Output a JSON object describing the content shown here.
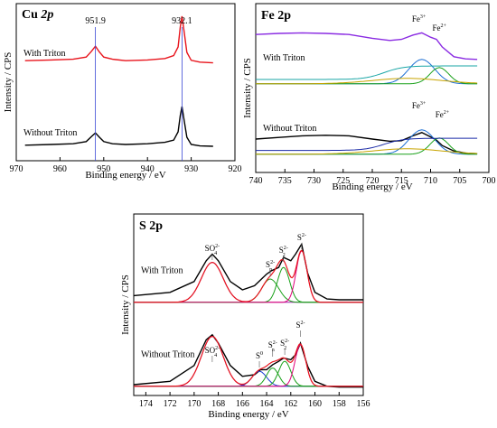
{
  "chart_data": [
    {
      "type": "line",
      "title_main": "Cu",
      "title_sub": "2p",
      "xlabel": "Binding energy / eV",
      "ylabel": "Intensity / CPS",
      "xlim": [
        970,
        920
      ],
      "xticks": [
        970,
        960,
        950,
        940,
        930,
        920
      ],
      "peak_labels": [
        {
          "x": 951.9,
          "text": "951.9"
        },
        {
          "x": 932.1,
          "text": "932.1"
        }
      ],
      "series": [
        {
          "name": "With Triton",
          "color": "#e8141c",
          "offset": 1.0,
          "x": [
            968,
            962,
            957,
            954,
            952.8,
            951.9,
            951,
            950,
            948,
            945,
            940,
            936,
            934,
            933,
            932.5,
            932.1,
            931.6,
            931,
            930,
            928,
            925
          ],
          "y": [
            0.32,
            0.34,
            0.36,
            0.42,
            0.58,
            0.72,
            0.56,
            0.42,
            0.36,
            0.32,
            0.34,
            0.38,
            0.46,
            0.7,
            1.25,
            1.55,
            1.1,
            0.55,
            0.33,
            0.28,
            0.26
          ]
        },
        {
          "name": "Without Triton",
          "color": "#000000",
          "offset": 0.0,
          "x": [
            968,
            962,
            957,
            954,
            952.8,
            951.9,
            951,
            950,
            948,
            945,
            940,
            936,
            934,
            933,
            932.5,
            932.1,
            931.6,
            931,
            930,
            928,
            925
          ],
          "y": [
            0.18,
            0.2,
            0.22,
            0.28,
            0.42,
            0.52,
            0.4,
            0.28,
            0.22,
            0.2,
            0.22,
            0.26,
            0.32,
            0.55,
            1.0,
            1.25,
            0.85,
            0.4,
            0.2,
            0.16,
            0.15
          ]
        }
      ]
    },
    {
      "type": "line",
      "title": "Fe 2p",
      "xlabel": "Binding energy / eV",
      "ylabel": "Intensity / CPS",
      "xlim": [
        740,
        700
      ],
      "xticks": [
        740,
        735,
        730,
        725,
        720,
        715,
        710,
        705,
        700
      ],
      "series": [
        {
          "name": "With Triton",
          "color": "#8a2be2",
          "offset": 1.0,
          "x": [
            740,
            736,
            732,
            728,
            724,
            720,
            717,
            715,
            713,
            711.5,
            710,
            709,
            708,
            706,
            704,
            702
          ],
          "y": [
            0.93,
            0.95,
            0.96,
            0.95,
            0.93,
            0.86,
            0.82,
            0.84,
            0.92,
            0.96,
            0.88,
            0.84,
            0.7,
            0.52,
            0.48,
            0.47
          ]
        },
        {
          "name": "Without Triton",
          "color": "#000000",
          "offset": 0.0,
          "x": [
            740,
            736,
            732,
            728,
            724,
            720,
            717,
            715,
            713,
            711.5,
            710,
            709,
            708,
            706,
            704,
            702
          ],
          "y": [
            0.3,
            0.33,
            0.36,
            0.37,
            0.36,
            0.3,
            0.26,
            0.27,
            0.36,
            0.42,
            0.34,
            0.28,
            0.18,
            0.08,
            0.04,
            0.03
          ]
        }
      ],
      "peak_labels": [
        {
          "text": "Fe",
          "sup": "3+",
          "x": 712,
          "row": "top"
        },
        {
          "text": "Fe",
          "sup": "2+",
          "x": 708.5,
          "row": "top"
        },
        {
          "text": "Fe",
          "sup": "3+",
          "x": 712,
          "row": "bottom"
        },
        {
          "text": "Fe",
          "sup": "2+",
          "x": 708,
          "row": "bottom"
        }
      ]
    },
    {
      "type": "line",
      "title": "S 2p",
      "xlabel": "Binding energy / eV",
      "ylabel": "Intensity / CPS",
      "xlim": [
        175,
        156
      ],
      "xticks": [
        174,
        172,
        170,
        168,
        166,
        164,
        162,
        160,
        158,
        156
      ],
      "series": [
        {
          "name": "With Triton",
          "color": "#000000",
          "offset": 1.0,
          "x": [
            175,
            172,
            170,
            169,
            168.5,
            168,
            167,
            166,
            165,
            164,
            163.6,
            163,
            162.6,
            162,
            161.6,
            161.1,
            160.6,
            160,
            159,
            158,
            156
          ],
          "y": [
            0.18,
            0.22,
            0.35,
            0.6,
            0.68,
            0.6,
            0.35,
            0.25,
            0.3,
            0.44,
            0.48,
            0.52,
            0.64,
            0.6,
            0.68,
            0.8,
            0.45,
            0.22,
            0.14,
            0.13,
            0.13
          ]
        },
        {
          "name": "Without Triton",
          "color": "#000000",
          "offset": 0.0,
          "x": [
            175,
            172,
            170,
            169,
            168.5,
            168,
            167,
            166,
            165,
            164.5,
            164,
            163.5,
            163,
            162.6,
            162,
            161.6,
            161.2,
            160.6,
            160,
            159,
            158,
            156
          ],
          "y": [
            0.12,
            0.16,
            0.35,
            0.66,
            0.72,
            0.62,
            0.35,
            0.22,
            0.24,
            0.3,
            0.3,
            0.36,
            0.4,
            0.44,
            0.42,
            0.48,
            0.62,
            0.34,
            0.16,
            0.1,
            0.09,
            0.09
          ]
        }
      ],
      "peak_labels": [
        {
          "main": "SO",
          "sub": "4",
          "sup": "2-",
          "x": 168.5,
          "row": "top"
        },
        {
          "main": "S",
          "sub": "n",
          "sup": "2-",
          "x": 163.7,
          "row": "top"
        },
        {
          "main": "S",
          "sub": "2",
          "sup": "2-",
          "x": 162.6,
          "row": "top"
        },
        {
          "main": "S",
          "sub": "",
          "sup": "2-",
          "x": 161.1,
          "row": "top"
        },
        {
          "main": "SO",
          "sub": "4",
          "sup": "2-",
          "x": 168.5,
          "row": "bottom"
        },
        {
          "main": "S",
          "sub": "",
          "sup": "0",
          "x": 164.6,
          "row": "bottom"
        },
        {
          "main": "S",
          "sub": "n",
          "sup": "2-",
          "x": 163.5,
          "row": "bottom"
        },
        {
          "main": "S",
          "sub": "2",
          "sup": "2-",
          "x": 162.5,
          "row": "bottom"
        },
        {
          "main": "S",
          "sub": "",
          "sup": "2-",
          "x": 161.2,
          "row": "bottom"
        }
      ]
    }
  ]
}
